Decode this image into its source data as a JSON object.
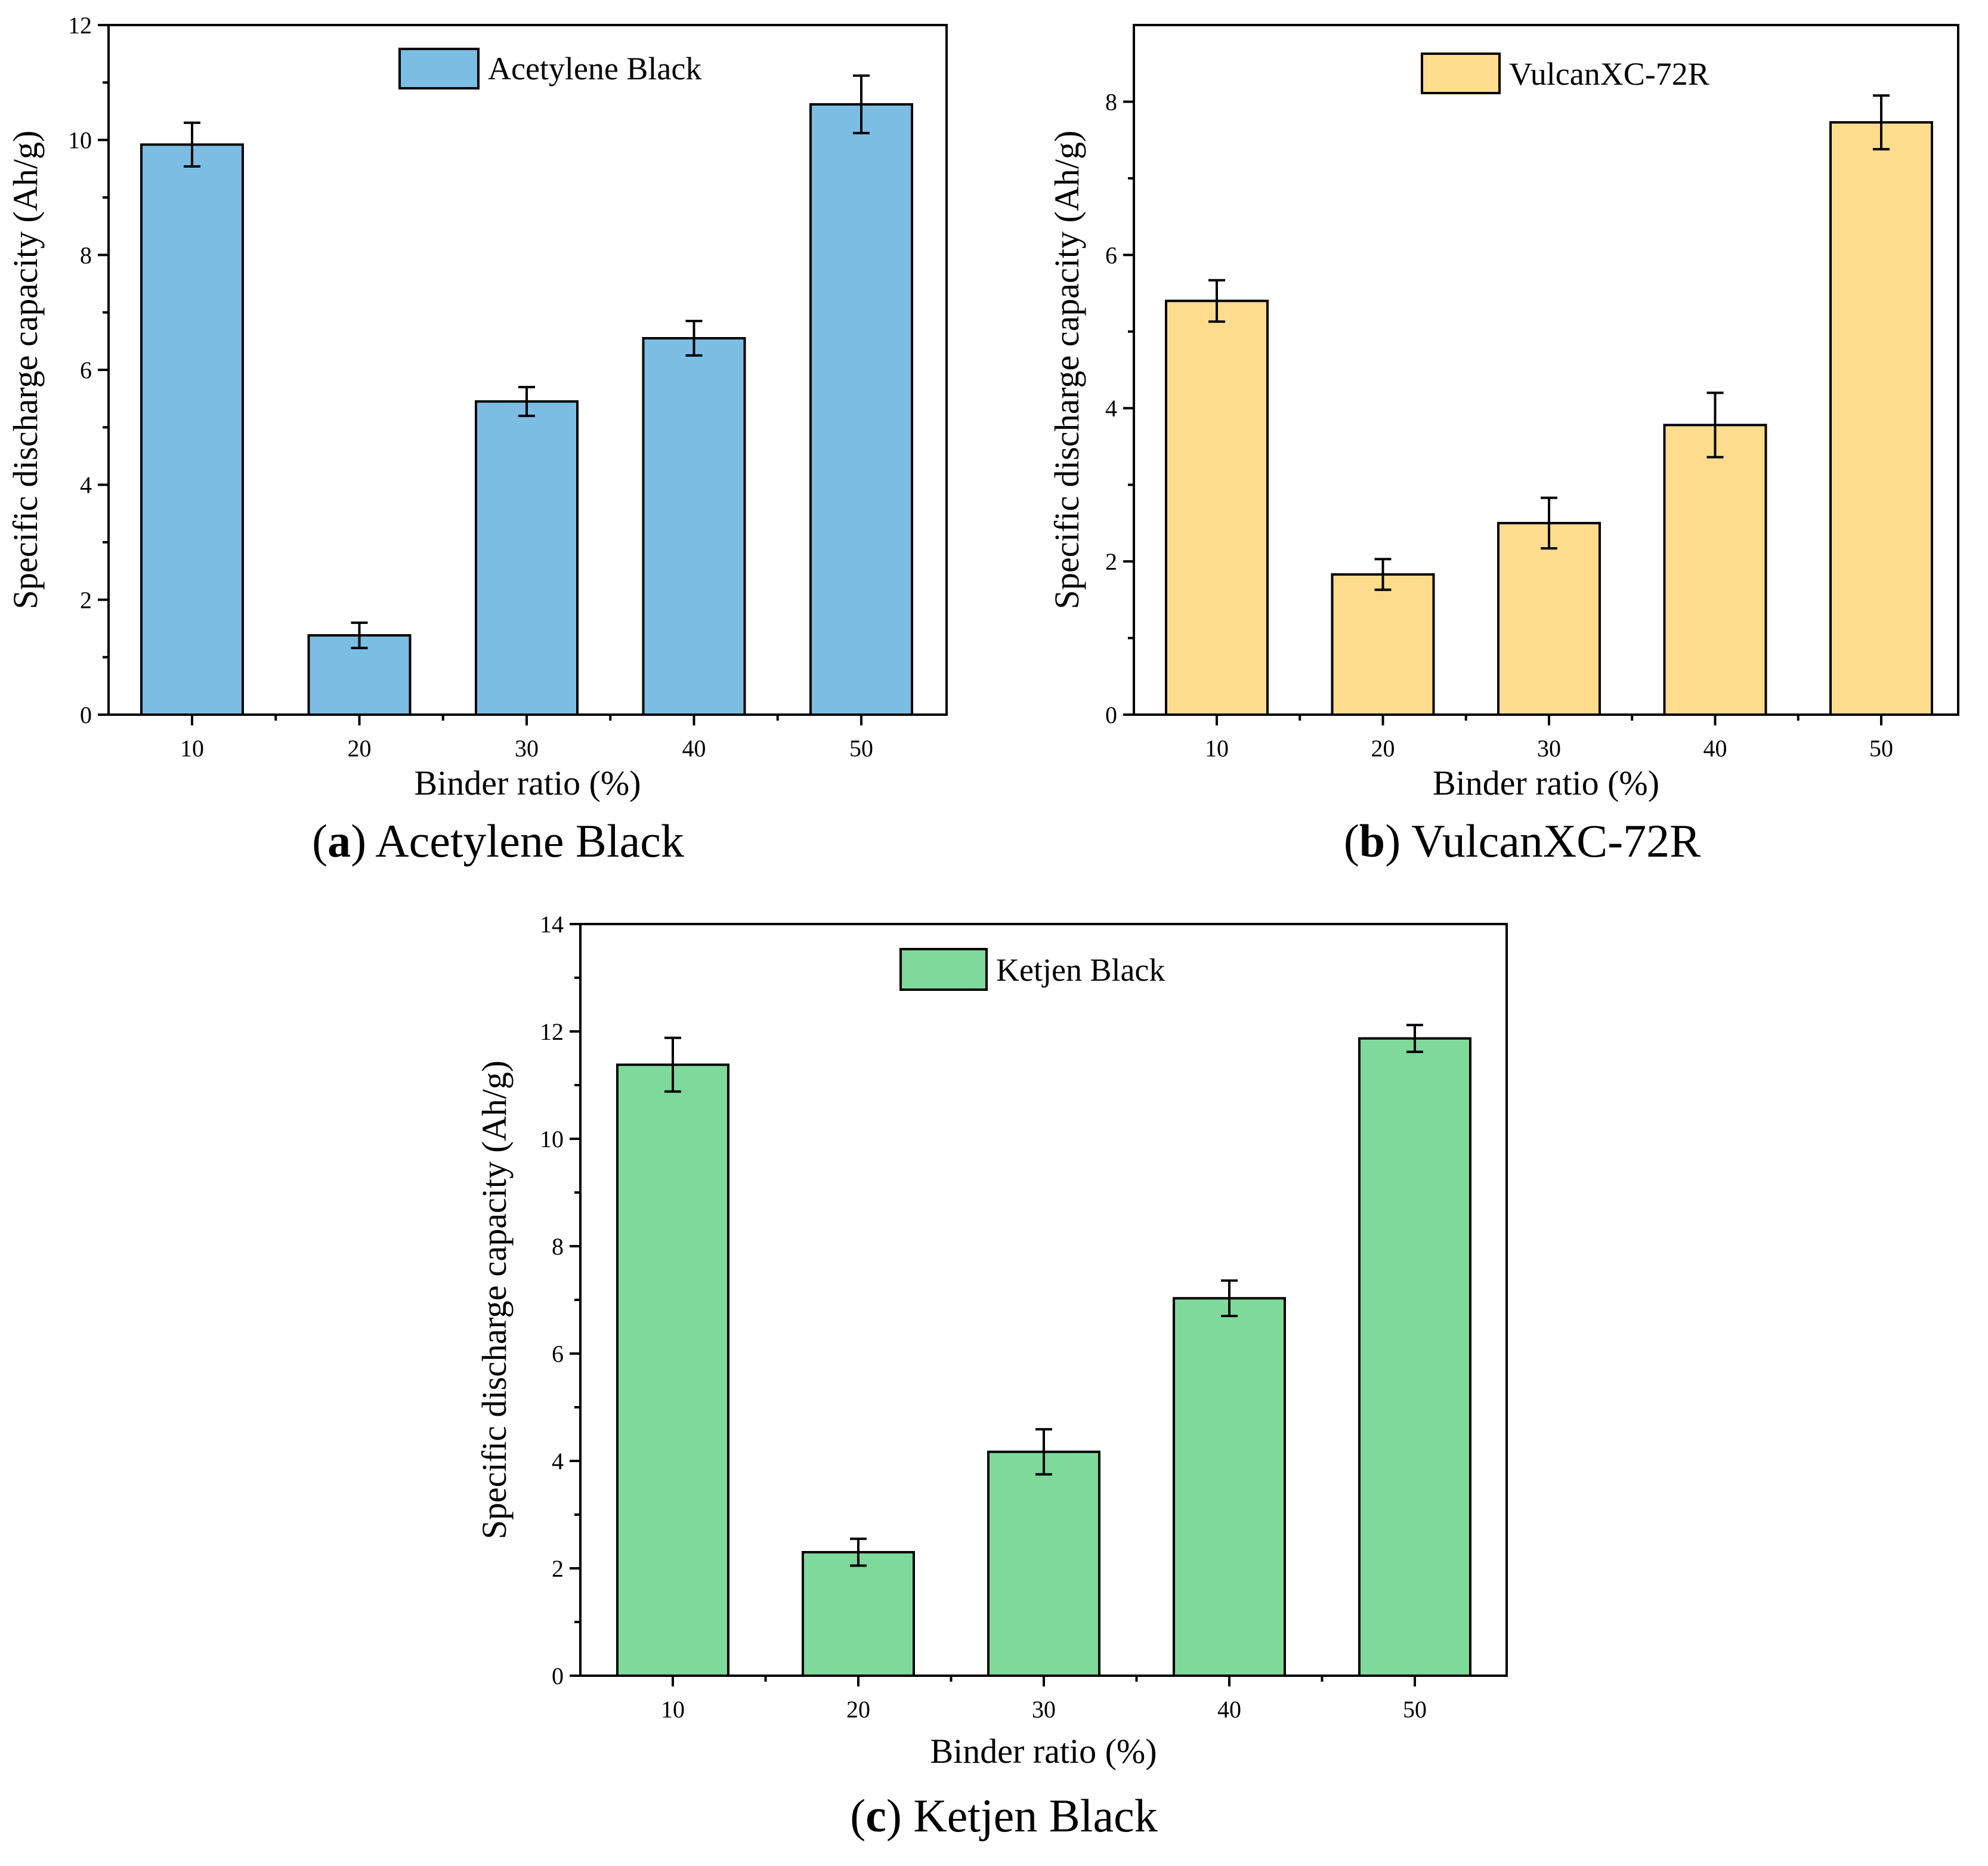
{
  "chart_data": [
    {
      "type": "bar",
      "categories": [
        "10",
        "20",
        "30",
        "40",
        "50"
      ],
      "series": [
        {
          "name": "Acetylene Black",
          "values": [
            9.92,
            1.38,
            5.45,
            6.55,
            10.62
          ],
          "errors": [
            0.38,
            0.22,
            0.25,
            0.3,
            0.5
          ],
          "color": "#7bbde3"
        }
      ],
      "xlabel": "Binder ratio (%)",
      "ylabel": "Specific discharge capacity (Ah/g)",
      "ylim": [
        0,
        12
      ],
      "yticks": [
        "0",
        "2",
        "4",
        "6",
        "8",
        "10",
        "12"
      ],
      "legend": "top-center",
      "caption_letter": "a",
      "caption_text": "Acetylene Black"
    },
    {
      "type": "bar",
      "categories": [
        "10",
        "20",
        "30",
        "40",
        "50"
      ],
      "series": [
        {
          "name": "VulcanXC-72R",
          "values": [
            5.4,
            1.83,
            2.5,
            3.78,
            7.73
          ],
          "errors": [
            0.27,
            0.2,
            0.33,
            0.42,
            0.35
          ],
          "color": "#fedc8e"
        }
      ],
      "xlabel": "Binder ratio (%)",
      "ylabel": "Specific discharge capacity (Ah/g)",
      "ylim": [
        0,
        9
      ],
      "yticks": [
        "0",
        "2",
        "4",
        "6",
        "8"
      ],
      "legend": "top-center",
      "caption_letter": "b",
      "caption_text": "VulcanXC-72R"
    },
    {
      "type": "bar",
      "categories": [
        "10",
        "20",
        "30",
        "40",
        "50"
      ],
      "series": [
        {
          "name": "Ketjen Black",
          "values": [
            11.38,
            2.3,
            4.17,
            7.03,
            11.87
          ],
          "errors": [
            0.5,
            0.25,
            0.42,
            0.33,
            0.25
          ],
          "color": "#7fd99a"
        }
      ],
      "xlabel": "Binder ratio (%)",
      "ylabel": "Specific discharge capacity (Ah/g)",
      "ylim": [
        0,
        14
      ],
      "yticks": [
        "0",
        "2",
        "4",
        "6",
        "8",
        "10",
        "12",
        "14"
      ],
      "legend": "top-center",
      "caption_letter": "c",
      "caption_text": "Ketjen Black"
    }
  ]
}
